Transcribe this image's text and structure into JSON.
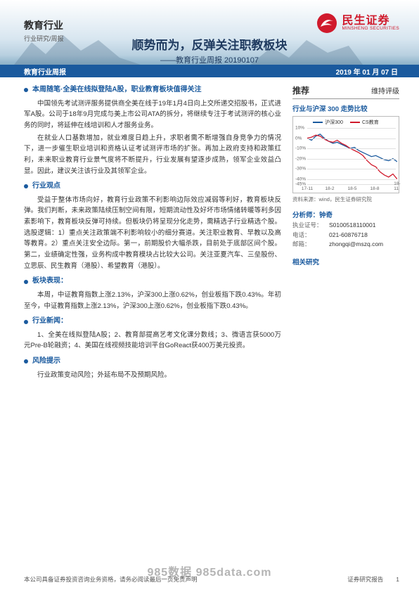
{
  "header": {
    "industry": "教育行业",
    "sub": "行业研究/周报",
    "logo_cn": "民生证券",
    "logo_en": "MINSHENG SECURITIES",
    "logo_color": "#d01a2c"
  },
  "title": {
    "main": "顺势而为，反弹关注职教板块",
    "sub": "——教育行业周报 20190107"
  },
  "bar": {
    "left": "教育行业周报",
    "right": "2019 年 01 月 07 日",
    "bg": "#1a5a9e"
  },
  "sections": [
    {
      "title": "本周随笔·全美在线拟登陆A股，职业教育板块值得关注",
      "paras": [
        "中国领先考试测评服务提供商全美在线于19年1月4日向上交所递交招股书，正式进军A股。公司于18年9月完成与美上市公司ATA的拆分，将继续专注于考试测评的核心业务的同时，将延伸在线培训和人才服务业务。",
        "在就业人口基数增加，就业难度日趋上升，求职者需不断增强自身竞争力的情况下，进一步催生职业培训和资格认证考试测评市场的扩张。再加上政府支持和政策红利，未来职业教育行业景气度将不断提升，行业发展有望逐步成熟，领军企业效益凸显。因此，建议关注该行业及其领军企业。"
      ]
    },
    {
      "title": "行业观点",
      "paras": [
        "受益于整体市场向好，教育行业政策不利影响边际效应减弱等利好，教育板块反弹。我们判断，未来政策陆续压制空间有限，短期流动性及好坏市场情绪转暖等利多因素影响下，教育板块反弹可持续。但板块仍将呈现分化走势，需精选子行业精选个股。选股逻辑：1）重点关注政策端不利影响较小的细分赛道。关注职业教育、早教以及高等教育。2）重点关注安全边际。第一，前期股价大幅杀跌，目前处于底部区间个股。第二，业绩确定性强，业务构成中教育模块占比较大公司。关注亚夏汽车、三垒股份、立思辰、民生教育（港股）、希望教育（港股）。"
      ]
    },
    {
      "title": "板块表现：",
      "paras": [
        "本周，中证教育指数上涨2.13%，沪深300上涨0.62%，创业板指下跌0.43%。年初至今，中证教育指数上涨2.13%，沪深300上涨0.62%，创业板指下跌0.43%。"
      ]
    },
    {
      "title": "行业新闻：",
      "paras": [
        "1、全美在线拟登陆A股；2、教育部提高艺考文化课分数线；3、微语言获5000万元Pre-B轮融资；4、美国在线视频技能培训平台GoReact获400万美元投资。"
      ]
    },
    {
      "title": "风险提示",
      "paras": [
        "行业政策变动风险；外延布局不及预期风险。"
      ]
    }
  ],
  "right": {
    "reco_label": "推荐",
    "reco_value": "维持评级",
    "chart_title": "行业与沪深 300 走势比较",
    "chart": {
      "type": "line",
      "series": [
        {
          "name": "沪深300",
          "color": "#1a5a9e",
          "values": [
            0,
            -2,
            2,
            4,
            0,
            -3,
            -5,
            -4,
            -6,
            -8,
            -10,
            -9,
            -12,
            -14,
            -16,
            -18,
            -17,
            -19,
            -21,
            -22,
            -20,
            -23
          ]
        },
        {
          "name": "CS教育",
          "color": "#d01a2c",
          "values": [
            0,
            1,
            3,
            2,
            -1,
            -3,
            -4,
            -2,
            -5,
            -7,
            -10,
            -12,
            -14,
            -17,
            -22,
            -26,
            -28,
            -33,
            -36,
            -38,
            -35,
            -40
          ]
        }
      ],
      "ylim": [
        -45,
        10
      ],
      "yticks": [
        {
          "v": 10,
          "label": "10%"
        },
        {
          "v": 0,
          "label": "0%"
        },
        {
          "v": -10,
          "label": "-10%"
        },
        {
          "v": -20,
          "label": "-20%"
        },
        {
          "v": -30,
          "label": "-30%"
        },
        {
          "v": -40,
          "label": "-40%"
        },
        {
          "v": -45,
          "label": "-45%"
        }
      ],
      "xticks": [
        "17-11",
        "18-2",
        "18-5",
        "18-8",
        "18-11"
      ],
      "grid_color": "#e0e0e0",
      "background": "#ffffff"
    },
    "chart_source": "资料来源：wind，民生证券研究院",
    "analyst": {
      "name_label": "分析师：钟奇",
      "rows": [
        {
          "label": "执业证号：",
          "value": "S0100518110001"
        },
        {
          "label": "电话：",
          "value": "021-60876718"
        },
        {
          "label": "邮箱：",
          "value": "zhongqi@mszq.com"
        }
      ]
    },
    "related_title": "相关研究"
  },
  "footer": {
    "left": "本公司具备证券投资咨询业务资格，请务必阅读最后一页免责声明",
    "right_label": "证券研究报告",
    "page": "1"
  },
  "watermark": "985数据 985data.com",
  "colors": {
    "brand_blue": "#1a5a9e",
    "brand_red": "#d01a2c"
  }
}
